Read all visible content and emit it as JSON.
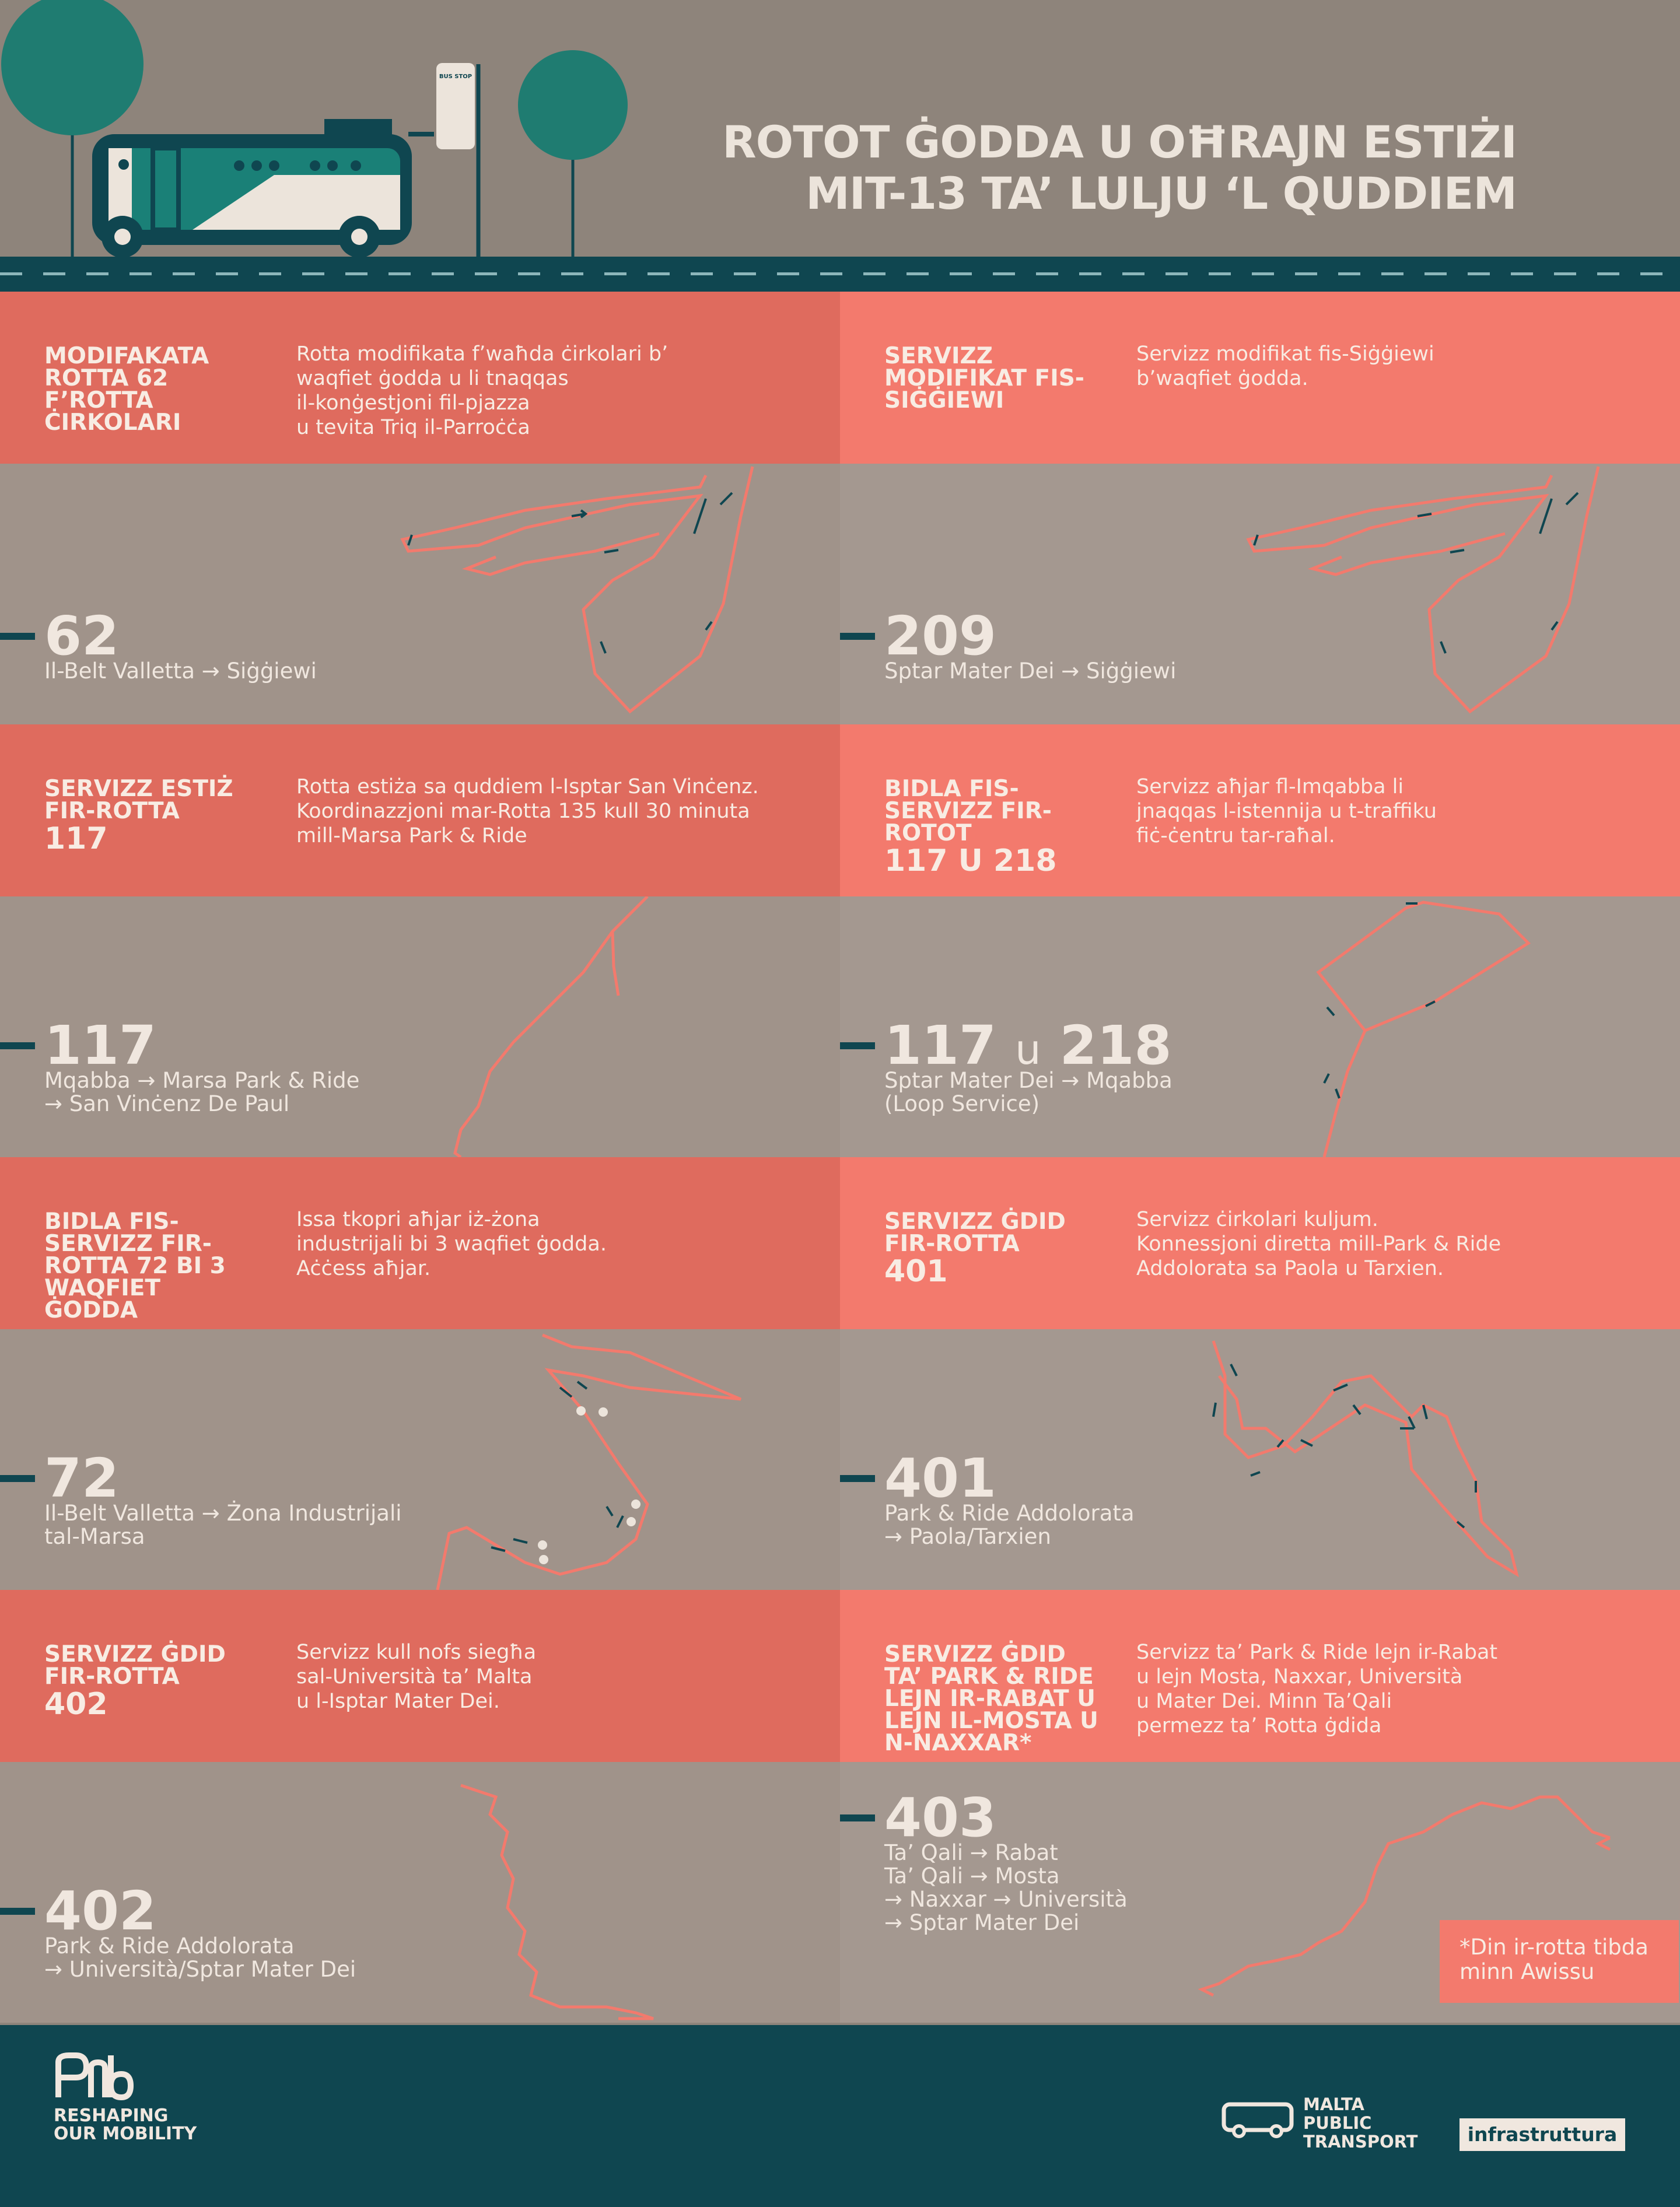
{
  "header": {
    "title_line1": "ROTOT ĠODDA U OĦRAJN ESTIŻI",
    "title_line2": "MIT-13 TA’ LULJU  ‘L QUDDIEM",
    "bus_stop_sign": "BUS STOP"
  },
  "routes": [
    {
      "heading": "MODIFAKATA ROTTA 62 F’ROTTA ĊIRKOLARI",
      "heading_big": "",
      "description": "Rotta modifikata f’waħda ċirkolari b’\nwaqfiet ġodda u li tnaqqas\nil-konġestjoni fil-pjazza\nu tevita Triq il-Parroċċa",
      "number": "62",
      "number_extra": "",
      "destination": "Il-Belt Valletta → Siġġiewi"
    },
    {
      "heading": "SERVIZZ MODIFIKAT FIS-SIĠĠIEWI",
      "heading_big": "",
      "description": "Servizz modifikat fis-Siġġiewi\nb’waqfiet ġodda.",
      "number": "209",
      "number_extra": "",
      "destination": "Sptar Mater Dei → Siġġiewi"
    },
    {
      "heading": "SERVIZZ ESTIŻ FIR-ROTTA",
      "heading_big": "117",
      "description": "Rotta estiża sa quddiem l-Isptar San Vinċenz.\nKoordinazzjoni mar-Rotta 135 kull 30 minuta\nmill-Marsa Park & Ride",
      "number": "117",
      "number_extra": "",
      "destination": "Mqabba → Marsa Park & Ride\n→ San Vinċenz De Paul"
    },
    {
      "heading": "BIDLA FIS-SERVIZZ FIR-ROTOT",
      "heading_big": "117 u 218",
      "description": "Servizz aħjar fl-Imqabba li\njnaqqas l-istennija u t-traffiku\nfiċ-ċentru tar-raħal.",
      "number": "117",
      "number_extra": "218",
      "destination": "Sptar Mater Dei → Mqabba\n(Loop Service)"
    },
    {
      "heading": "BIDLA FIS-SERVIZZ FIR-ROTTA 72 BI 3 WAQFIET ĠODDA",
      "heading_big": "",
      "description": "Issa tkopri aħjar iż-żona\nindustrijali bi 3 waqfiet ġodda.\nAċċess aħjar.",
      "number": "72",
      "number_extra": "",
      "destination": "Il-Belt Valletta → Żona Industrijali\ntal-Marsa"
    },
    {
      "heading": "SERVIZZ ĠDID FIR-ROTTA",
      "heading_big": "401",
      "description": "Servizz ċirkolari kuljum.\nKonnessjoni diretta mill-Park & Ride\nAddolorata sa Paola u Tarxien.",
      "number": "401",
      "number_extra": "",
      "destination": "Park & Ride Addolorata\n→ Paola/Tarxien"
    },
    {
      "heading": "SERVIZZ ĠDID FIR-ROTTA",
      "heading_big": "402",
      "description": "Servizz kull nofs siegħa\nsal-Università ta’ Malta\nu l-Isptar Mater Dei.",
      "number": "402",
      "number_extra": "",
      "destination": "Park & Ride Addolorata\n→ Università/Sptar Mater Dei"
    },
    {
      "heading": "SERVIZZ ĠDID TA’ PARK & RIDE LEJN IR-RABAT U LEJN IL-MOSTA U N-NAXXAR*",
      "heading_big": "",
      "description": "Servizz ta’ Park & Ride lejn ir-Rabat\nu lejn Mosta, Naxxar, Università\nu Mater Dei. Minn Ta’Qali\npermezz ta’ Rotta ġdida",
      "number": "403",
      "number_extra": "",
      "destination": "Ta’ Qali → Rabat\nTa’ Qali → Mosta\n→ Naxxar → Università\n→ Sptar Mater Dei"
    }
  ],
  "number_joiner": "u",
  "note": "*Din ir-rotta tibda\nminn Awissu",
  "footer": {
    "rom_logo_text": "RESHAPING OUR MOBILITY",
    "mpt_text": "MALTA PUBLIC TRANSPORT",
    "infra_text": "infrastruttura"
  },
  "colors": {
    "background": "#8e847b",
    "band_left": "#df6b5e",
    "band_right": "#f37a6d",
    "dark_teal": "#0f4650",
    "route_line": "#f37a6d"
  }
}
